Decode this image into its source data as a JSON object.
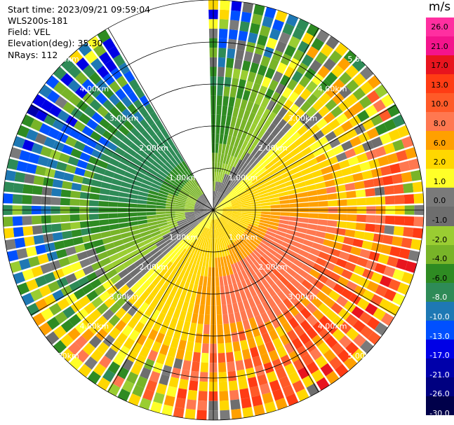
{
  "chart_data": {
    "type": "ppi-velocity",
    "title_lines": {
      "start_time": "Start time: 2023/09/21 09:59:04",
      "instrument": "WLS200s-181",
      "field": "Field: VEL",
      "elevation": "Elevation(deg): 35.30",
      "nrays": "NRays: 112"
    },
    "range_unit": "km",
    "range_rings_km": [
      1.0,
      2.0,
      3.0,
      4.0,
      5.0
    ],
    "range_labels": [
      "1.00km",
      "2.00km",
      "3.00km",
      "4.00km",
      "5.00km"
    ],
    "max_range_km": 5.0,
    "nrays": 112,
    "missing_sector_deg": [
      -30,
      0
    ],
    "colorbar": {
      "unit": "m/s",
      "ticks": [
        "26.0",
        "21.0",
        "17.0",
        "13.0",
        "10.0",
        "8.0",
        "6.0",
        "2.0",
        "1.0",
        "0.0",
        "-1.0",
        "-2.0",
        "-4.0",
        "-6.0",
        "-8.0",
        "-10.0",
        "-13.0",
        "-17.0",
        "-21.0",
        "-26.0",
        "-30.0"
      ],
      "colors": [
        "#ff2fa0",
        "#f4148c",
        "#e8141e",
        "#ff3c14",
        "#ff5a28",
        "#ff7850",
        "#ffa000",
        "#ffd700",
        "#ffff28",
        "#7a7a7a",
        "#6e6e6e",
        "#9acd32",
        "#78b428",
        "#2e8b22",
        "#2e8b57",
        "#1e78b4",
        "#0050ff",
        "#0000e6",
        "#0000aa",
        "#000080",
        "#00004a"
      ]
    }
  }
}
